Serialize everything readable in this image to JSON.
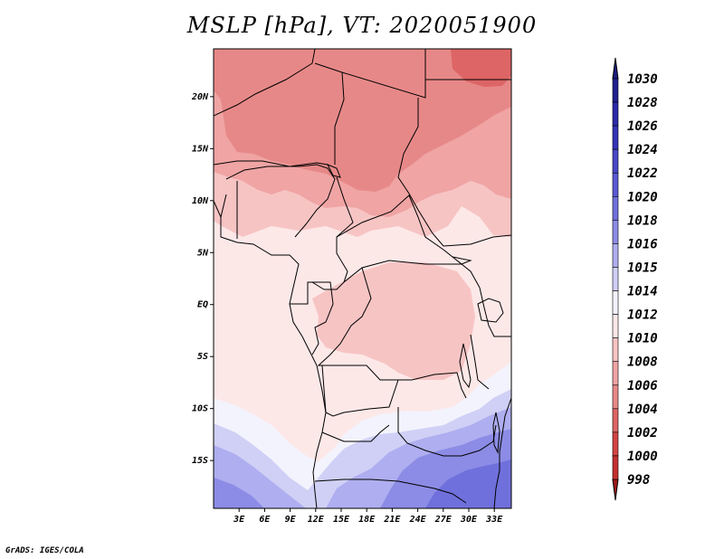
{
  "title": "MSLP [hPa], VT: 2020051900",
  "credit": "GrADS: IGES/COLA",
  "variable": "MSLP",
  "units": "hPa",
  "valid_time": "2020051900",
  "colorbar": {
    "levels": [
      {
        "label": "1030",
        "color": "#20208f"
      },
      {
        "label": "1028",
        "color": "#2a2aa8"
      },
      {
        "label": "1026",
        "color": "#3434b8"
      },
      {
        "label": "1024",
        "color": "#4848c8"
      },
      {
        "label": "1022",
        "color": "#5a5ad4"
      },
      {
        "label": "1020",
        "color": "#7070dc"
      },
      {
        "label": "1018",
        "color": "#8c8ce6"
      },
      {
        "label": "1016",
        "color": "#aeaef0"
      },
      {
        "label": "1015",
        "color": "#d0d0f6"
      },
      {
        "label": "1014",
        "color": "#f3f3fd"
      },
      {
        "label": "1012",
        "color": "#fde8e8"
      },
      {
        "label": "1010",
        "color": "#f7c4c4"
      },
      {
        "label": "1008",
        "color": "#f0a4a4"
      },
      {
        "label": "1006",
        "color": "#e78888"
      },
      {
        "label": "1004",
        "color": "#dd6565"
      },
      {
        "label": "1002",
        "color": "#d44444"
      },
      {
        "label": "1000",
        "color": "#c43030"
      },
      {
        "label": "998",
        "color": "#b02222"
      }
    ],
    "top_arrow_color": "#1c1c80",
    "bottom_arrow_color": "#a01a1a"
  },
  "map": {
    "lat_labels": [
      "20N",
      "15N",
      "10N",
      "5N",
      "EQ",
      "5S",
      "10S",
      "15S"
    ],
    "lon_labels": [
      "3E",
      "6E",
      "9E",
      "12E",
      "15E",
      "18E",
      "21E",
      "24E",
      "27E",
      "30E",
      "33E"
    ],
    "lat_values": [
      20,
      15,
      10,
      5,
      0,
      -5,
      -10,
      -15
    ],
    "lon_values": [
      3,
      6,
      9,
      12,
      15,
      18,
      21,
      24,
      27,
      30,
      33
    ],
    "lon_range": [
      0,
      35
    ],
    "lat_range": [
      -19.6,
      24.6
    ],
    "field_colors": {
      "c998": "#b02222",
      "c1004": "#dd6565",
      "c1006": "#e78888",
      "c1008": "#f0a4a4",
      "c1010": "#f7c4c4",
      "c1012": "#fde8e8",
      "c1014": "#f3f3fd",
      "c1015": "#d0d0f6",
      "c1016": "#aeaef0",
      "c1018": "#8c8ce6",
      "c1020": "#7070dc"
    }
  }
}
